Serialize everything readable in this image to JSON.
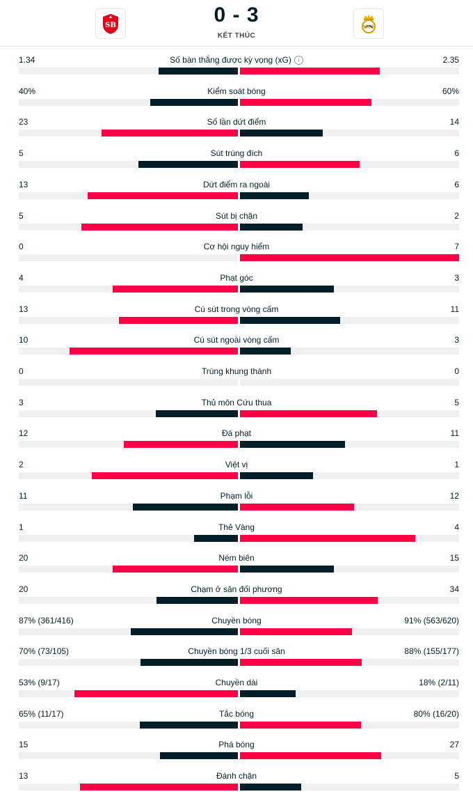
{
  "match": {
    "score": "0 - 3",
    "status": "KẾT THÚC",
    "home_logo": "stade-brestois-crest",
    "away_logo": "real-madrid-crest"
  },
  "colors": {
    "winner": "#ff0046",
    "loser": "#001e28",
    "track": "#eef0f2"
  },
  "stats": [
    {
      "label": "Số bàn thắng được kỳ vọng (xG)",
      "home": "1.34",
      "away": "2.35",
      "home_val": 1.34,
      "away_val": 2.35,
      "info": true
    },
    {
      "label": "Kiểm soát bóng",
      "home": "40%",
      "away": "60%",
      "home_val": 40,
      "away_val": 60
    },
    {
      "label": "Số lần dứt điểm",
      "home": "23",
      "away": "14",
      "home_val": 23,
      "away_val": 14
    },
    {
      "label": "Sút trúng đích",
      "home": "5",
      "away": "6",
      "home_val": 5,
      "away_val": 6
    },
    {
      "label": "Dứt điểm ra ngoài",
      "home": "13",
      "away": "6",
      "home_val": 13,
      "away_val": 6
    },
    {
      "label": "Sút bị chặn",
      "home": "5",
      "away": "2",
      "home_val": 5,
      "away_val": 2
    },
    {
      "label": "Cơ hội nguy hiểm",
      "home": "0",
      "away": "7",
      "home_val": 0,
      "away_val": 7
    },
    {
      "label": "Phạt góc",
      "home": "4",
      "away": "3",
      "home_val": 4,
      "away_val": 3
    },
    {
      "label": "Cú sút trong vòng cấm",
      "home": "13",
      "away": "11",
      "home_val": 13,
      "away_val": 11
    },
    {
      "label": "Cú sút ngoài vòng cấm",
      "home": "10",
      "away": "3",
      "home_val": 10,
      "away_val": 3
    },
    {
      "label": "Trúng khung thành",
      "home": "0",
      "away": "0",
      "home_val": 0,
      "away_val": 0
    },
    {
      "label": "Thủ môn Cứu thua",
      "home": "3",
      "away": "5",
      "home_val": 3,
      "away_val": 5
    },
    {
      "label": "Đá phạt",
      "home": "12",
      "away": "11",
      "home_val": 12,
      "away_val": 11
    },
    {
      "label": "Việt vị",
      "home": "2",
      "away": "1",
      "home_val": 2,
      "away_val": 1
    },
    {
      "label": "Phạm lỗi",
      "home": "11",
      "away": "12",
      "home_val": 11,
      "away_val": 12
    },
    {
      "label": "Thẻ Vàng",
      "home": "1",
      "away": "4",
      "home_val": 1,
      "away_val": 4
    },
    {
      "label": "Ném biên",
      "home": "20",
      "away": "15",
      "home_val": 20,
      "away_val": 15
    },
    {
      "label": "Chạm ở sân đối phương",
      "home": "20",
      "away": "34",
      "home_val": 20,
      "away_val": 34
    },
    {
      "label": "Chuyền bóng",
      "home": "87% (361/416)",
      "away": "91% (563/620)",
      "home_val": 87,
      "away_val": 91
    },
    {
      "label": "Chuyền bóng 1/3 cuối sân",
      "home": "70% (73/105)",
      "away": "88% (155/177)",
      "home_val": 70,
      "away_val": 88
    },
    {
      "label": "Chuyền dài",
      "home": "53% (9/17)",
      "away": "18% (2/11)",
      "home_val": 53,
      "away_val": 18
    },
    {
      "label": "Tắc bóng",
      "home": "65% (11/17)",
      "away": "80% (16/20)",
      "home_val": 65,
      "away_val": 80
    },
    {
      "label": "Phá bóng",
      "home": "15",
      "away": "27",
      "home_val": 15,
      "away_val": 27
    },
    {
      "label": "Đánh chặn",
      "home": "13",
      "away": "5",
      "home_val": 13,
      "away_val": 5
    }
  ]
}
